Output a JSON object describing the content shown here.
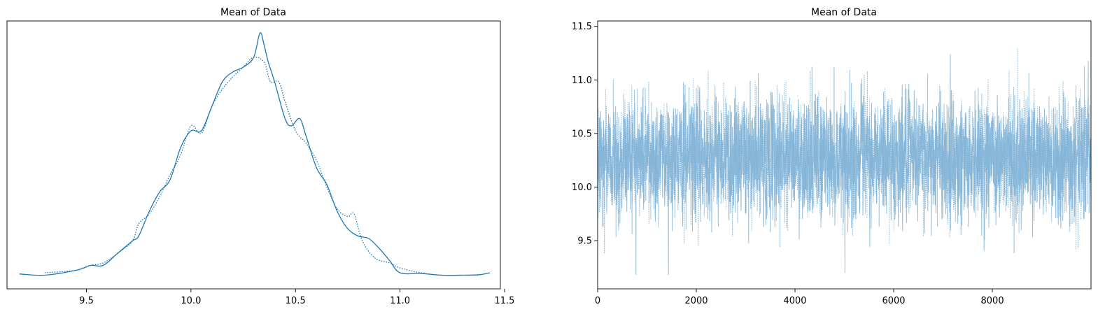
{
  "chart_data": [
    {
      "type": "line",
      "title": "Mean of Data",
      "xlabel": "",
      "ylabel": "",
      "xlim": [
        9.12,
        11.48
      ],
      "x_ticks": [
        "9.5",
        "10.0",
        "10.5",
        "11.0",
        "11.5"
      ],
      "y_ticks": [],
      "grid": false,
      "legend": "none",
      "series": [
        {
          "style": "solid",
          "color": "#1f77b4",
          "x": [
            9.18,
            9.3,
            9.45,
            9.52,
            9.58,
            9.65,
            9.72,
            9.75,
            9.8,
            9.85,
            9.9,
            9.95,
            10.0,
            10.05,
            10.1,
            10.15,
            10.2,
            10.25,
            10.3,
            10.33,
            10.35,
            10.37,
            10.4,
            10.45,
            10.48,
            10.52,
            10.55,
            10.6,
            10.65,
            10.7,
            10.75,
            10.8,
            10.85,
            10.9,
            10.95,
            11.0,
            11.1,
            11.2,
            11.3,
            11.38,
            11.43
          ],
          "y": [
            0.015,
            0.01,
            0.03,
            0.05,
            0.05,
            0.1,
            0.15,
            0.17,
            0.27,
            0.35,
            0.4,
            0.53,
            0.6,
            0.6,
            0.7,
            0.8,
            0.84,
            0.86,
            0.9,
            1.0,
            0.95,
            0.88,
            0.8,
            0.65,
            0.62,
            0.65,
            0.58,
            0.45,
            0.38,
            0.27,
            0.2,
            0.17,
            0.16,
            0.12,
            0.07,
            0.02,
            0.017,
            0.01,
            0.01,
            0.012,
            0.02
          ]
        },
        {
          "style": "dotted",
          "color": "#1f77b4",
          "x": [
            9.3,
            9.45,
            9.52,
            9.58,
            9.65,
            9.72,
            9.75,
            9.8,
            9.85,
            9.9,
            9.95,
            10.0,
            10.05,
            10.1,
            10.15,
            10.2,
            10.25,
            10.3,
            10.35,
            10.38,
            10.42,
            10.45,
            10.5,
            10.55,
            10.6,
            10.65,
            10.7,
            10.75,
            10.78,
            10.82,
            10.88,
            10.95,
            11.0,
            11.1,
            11.2,
            11.3,
            11.38
          ],
          "y": [
            0.02,
            0.03,
            0.05,
            0.06,
            0.1,
            0.15,
            0.22,
            0.26,
            0.33,
            0.42,
            0.5,
            0.62,
            0.59,
            0.7,
            0.77,
            0.82,
            0.86,
            0.9,
            0.88,
            0.8,
            0.8,
            0.72,
            0.6,
            0.55,
            0.48,
            0.37,
            0.28,
            0.25,
            0.26,
            0.15,
            0.08,
            0.06,
            0.04,
            0.02,
            0.01,
            0.01,
            0.01
          ]
        }
      ]
    },
    {
      "type": "line",
      "title": "Mean of Data",
      "xlabel": "",
      "ylabel": "",
      "xlim": [
        0,
        9999
      ],
      "ylim": [
        9.05,
        11.55
      ],
      "x_ticks": [
        "0",
        "2000",
        "4000",
        "6000",
        "8000"
      ],
      "y_ticks": [
        "9.5",
        "10.0",
        "10.5",
        "11.0",
        "11.5"
      ],
      "grid": false,
      "legend": "none",
      "n_draws": 10000,
      "mean": 10.28,
      "spread": 0.28,
      "min": 9.18,
      "max": 11.43,
      "series": [
        {
          "style": "solid",
          "color": "#7fb2d6"
        },
        {
          "style": "dotted",
          "color": "#7fb2d6"
        }
      ]
    }
  ]
}
